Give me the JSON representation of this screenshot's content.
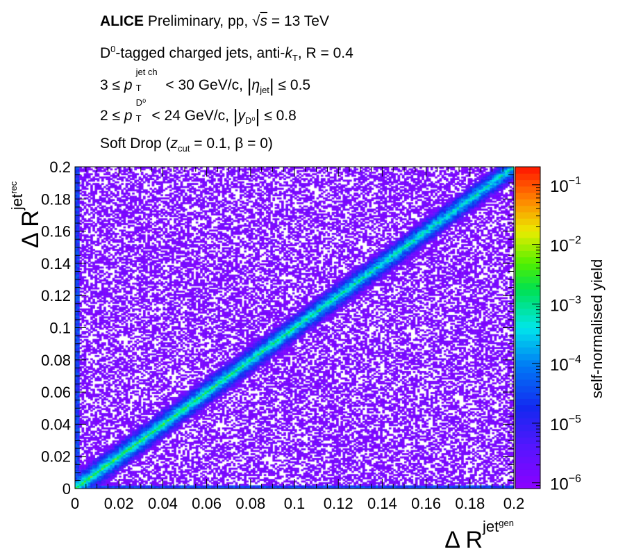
{
  "annotations": {
    "line1_bold": "ALICE",
    "line1_rest": "Preliminary, pp,",
    "line1_sqrt": "√",
    "line1_s": "s",
    "line1_energy": "= 13 TeV",
    "line2_d": "D",
    "line2_d_sup": "0",
    "line2_text": "-tagged charged jets, anti-",
    "line2_k": "k",
    "line2_k_sub": "T",
    "line2_r": ", R = 0.4",
    "line3_pre": "3 ≤",
    "line3_p": "p",
    "line3_p_sup": "jet ch",
    "line3_p_sub": "T",
    "line3_mid": "< 30 GeV/c,",
    "line3_eta": "η",
    "line3_eta_sub": "jet",
    "line3_post": "≤ 0.5",
    "line4_pre": "2 ≤",
    "line4_p": "p",
    "line4_p_sup": "D⁰",
    "line4_p_sub": "T",
    "line4_mid": "< 24 GeV/c,",
    "line4_y": "y",
    "line4_y_sub": "D⁰",
    "line4_post": "≤ 0.8",
    "line5_pre": "Soft Drop (",
    "line5_z": "z",
    "line5_z_sub": "cut",
    "line5_post": "= 0.1, β = 0)"
  },
  "chart_data": {
    "type": "heatmap",
    "xlabel": "Δ R",
    "xlabel_sup": "jet",
    "xlabel_supsup": "gen",
    "ylabel": "Δ R",
    "ylabel_sup": "jet",
    "ylabel_supsup": "rec",
    "xlim": [
      0,
      0.2
    ],
    "ylim": [
      0,
      0.2
    ],
    "x_ticks": [
      "0",
      "0.02",
      "0.04",
      "0.06",
      "0.08",
      "0.1",
      "0.12",
      "0.14",
      "0.16",
      "0.18",
      "0.2"
    ],
    "y_ticks": [
      "0",
      "0.02",
      "0.04",
      "0.06",
      "0.08",
      "0.1",
      "0.12",
      "0.14",
      "0.16",
      "0.18",
      "0.2"
    ],
    "colorbar": {
      "label": "self-normalised yield",
      "scale": "log",
      "range": [
        8e-07,
        0.2
      ],
      "ticks": [
        {
          "value": 0.1,
          "base": "10",
          "exp": "−1"
        },
        {
          "value": 0.01,
          "base": "10",
          "exp": "−2"
        },
        {
          "value": 0.001,
          "base": "10",
          "exp": "−3"
        },
        {
          "value": 0.0001,
          "base": "10",
          "exp": "−4"
        },
        {
          "value": 1e-05,
          "base": "10",
          "exp": "−5"
        },
        {
          "value": 1e-06,
          "base": "10",
          "exp": "−6"
        }
      ]
    },
    "distribution": "strong diagonal correlation ΔR_rec ≈ ΔR_gen with yield ~1e-3 on diagonal, diffuse background ~1e-6 to 1e-5"
  }
}
